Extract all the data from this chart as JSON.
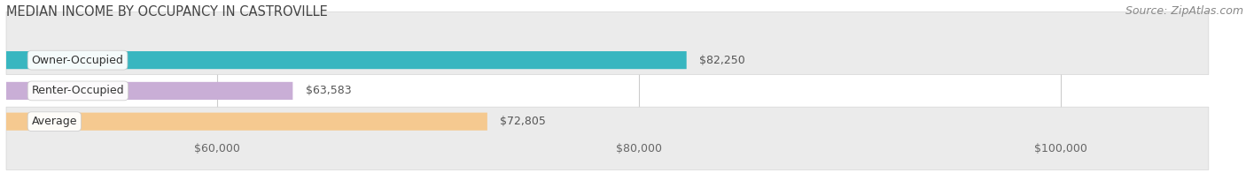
{
  "title": "MEDIAN INCOME BY OCCUPANCY IN CASTROVILLE",
  "source": "Source: ZipAtlas.com",
  "categories": [
    "Owner-Occupied",
    "Renter-Occupied",
    "Average"
  ],
  "values": [
    82250,
    63583,
    72805
  ],
  "bar_colors": [
    "#38b6c0",
    "#c9aed6",
    "#f5c990"
  ],
  "bar_labels": [
    "$82,250",
    "$63,583",
    "$72,805"
  ],
  "x_min": 50000,
  "x_max": 107000,
  "x_ticks": [
    60000,
    80000,
    100000
  ],
  "x_tick_labels": [
    "$60,000",
    "$80,000",
    "$100,000"
  ],
  "background_color": "#ffffff",
  "bar_background_color": "#ebebeb",
  "title_fontsize": 10.5,
  "source_fontsize": 9,
  "label_fontsize": 9,
  "tick_fontsize": 9
}
